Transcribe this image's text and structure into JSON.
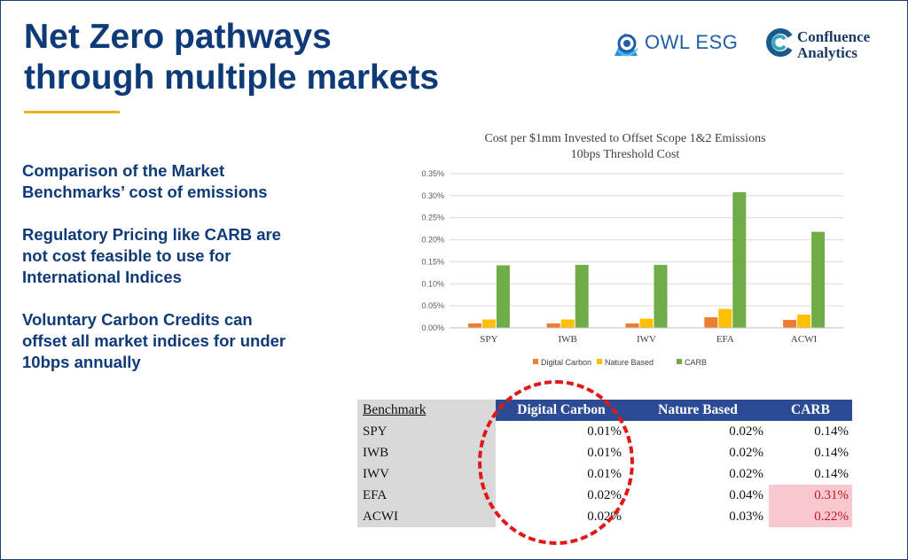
{
  "slide": {
    "title_line1": "Net Zero pathways",
    "title_line2": "through multiple markets",
    "bullets": [
      "Comparison of the Market Benchmarks’ cost of emissions",
      "Regulatory Pricing like CARB are not cost feasible to use for International Indices",
      "Voluntary Carbon Credits can offset all market indices for under 10bps annually"
    ]
  },
  "logos": {
    "owl": "OWL ESG",
    "confluence_line1": "Confluence",
    "confluence_line2": "Analytics"
  },
  "colors": {
    "title": "#0f3a78",
    "accent": "#e6b31e",
    "digital_carbon": "#ed7d31",
    "nature_based": "#ffc000",
    "carb": "#70ad47",
    "table_header": "#2b4c94",
    "highlight": "#f8c8ce",
    "circle": "#e01818"
  },
  "chart_data": {
    "type": "bar",
    "title": "Cost per $1mm Invested to Offset Scope 1&2 Emissions",
    "subtitle": "10bps Threshold Cost",
    "categories": [
      "SPY",
      "IWB",
      "IWV",
      "EFA",
      "ACWI"
    ],
    "series": [
      {
        "name": "Digital Carbon",
        "values": [
          0.01,
          0.01,
          0.01,
          0.024,
          0.018
        ]
      },
      {
        "name": "Nature Based",
        "values": [
          0.019,
          0.019,
          0.021,
          0.043,
          0.03
        ]
      },
      {
        "name": "CARB",
        "values": [
          0.142,
          0.143,
          0.143,
          0.308,
          0.218
        ]
      }
    ],
    "yticks": [
      "0.00%",
      "0.05%",
      "0.10%",
      "0.15%",
      "0.20%",
      "0.25%",
      "0.30%",
      "0.35%"
    ],
    "ylim": [
      0,
      0.35
    ],
    "unit": "%",
    "grid": true,
    "legend_position": "bottom"
  },
  "table": {
    "columns": [
      "Benchmark",
      "Digital Carbon",
      "Nature Based",
      "CARB"
    ],
    "rows": [
      {
        "benchmark": "SPY",
        "digital": "0.01%",
        "nature": "0.02%",
        "carb": "0.14%"
      },
      {
        "benchmark": "IWB",
        "digital": "0.01%",
        "nature": "0.02%",
        "carb": "0.14%"
      },
      {
        "benchmark": "IWV",
        "digital": "0.01%",
        "nature": "0.02%",
        "carb": "0.14%"
      },
      {
        "benchmark": "EFA",
        "digital": "0.02%",
        "nature": "0.04%",
        "carb": "0.31%"
      },
      {
        "benchmark": "ACWI",
        "digital": "0.02%",
        "nature": "0.03%",
        "carb": "0.22%"
      }
    ],
    "highlighted_carb_rows": [
      "EFA",
      "ACWI"
    ]
  }
}
